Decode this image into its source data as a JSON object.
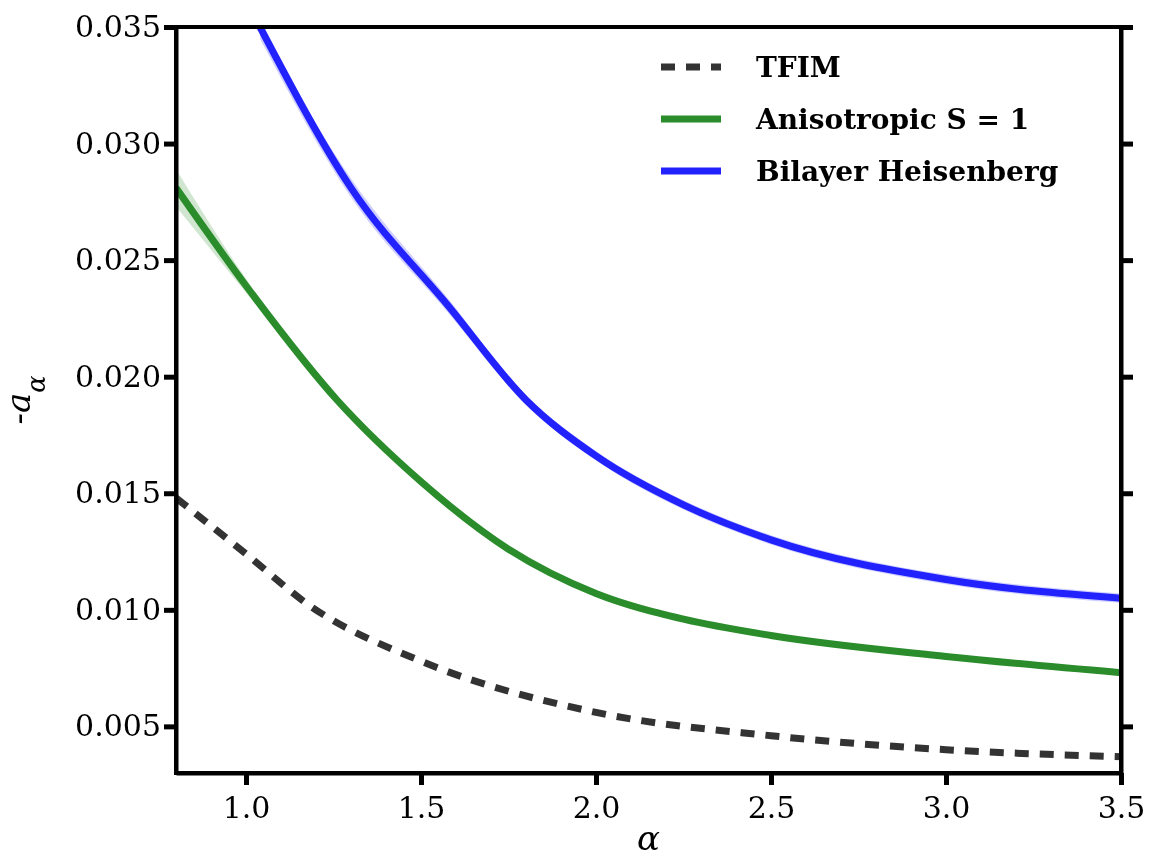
{
  "chart_data": {
    "type": "line",
    "xlabel": "α",
    "ylabel": "-a$_{α}$",
    "xlim": [
      0.8,
      3.5
    ],
    "ylim": [
      0.003,
      0.035
    ],
    "xticks": [
      {
        "value": 1.0,
        "label": "1.0"
      },
      {
        "value": 1.5,
        "label": "1.5"
      },
      {
        "value": 2.0,
        "label": "2.0"
      },
      {
        "value": 2.5,
        "label": "2.5"
      },
      {
        "value": 3.0,
        "label": "3.0"
      },
      {
        "value": 3.5,
        "label": "3.5"
      }
    ],
    "yticks": [
      0.005,
      {
        "value": 0.01,
        "label": "0.010"
      },
      0.015,
      {
        "value": 0.02,
        "label": "0.020"
      },
      0.025,
      {
        "value": 0.03,
        "label": "0.030"
      },
      0.035
    ],
    "grid": false,
    "legend": "top right",
    "marker": "none",
    "series": [
      {
        "name": "TFIM",
        "color": "#333333",
        "line_style": "dashed",
        "x": [
          0.8,
          1.0,
          1.18,
          1.5,
          2.0,
          2.5,
          3.0,
          3.5
        ],
        "values": [
          0.0148,
          0.0124,
          0.0102,
          0.0078,
          0.0056,
          0.0046,
          0.004,
          0.0037
        ]
      },
      {
        "name": "Anisotropic S = 1",
        "color": "#2a8c2a",
        "line_style": "solid",
        "x": [
          0.8,
          1.0,
          1.26,
          1.5,
          1.75,
          2.0,
          2.25,
          2.5,
          3.0,
          3.5
        ],
        "values": [
          0.0281,
          0.0239,
          0.019,
          0.0155,
          0.0126,
          0.0107,
          0.0096,
          0.0089,
          0.008,
          0.0073
        ],
        "lower": [
          0.0273,
          0.0236,
          0.0189,
          0.0154,
          0.0126,
          0.0107,
          0.0096,
          0.0089,
          0.008,
          0.0073
        ],
        "upper": [
          0.0289,
          0.0242,
          0.0191,
          0.0156,
          0.0126,
          0.0107,
          0.0096,
          0.0089,
          0.008,
          0.0073
        ]
      },
      {
        "name": "Bilayer Heisenberg",
        "color": "#2222ff",
        "line_style": "solid",
        "x": [
          1.04,
          1.3,
          1.58,
          1.8,
          2.0,
          2.25,
          2.5,
          3.0,
          3.5
        ],
        "values": [
          0.035,
          0.0281,
          0.023,
          0.019,
          0.0166,
          0.0145,
          0.013,
          0.0113,
          0.0105
        ],
        "lower": [
          0.0345,
          0.0277,
          0.0227,
          0.0188,
          0.0164,
          0.0143,
          0.0128,
          0.0111,
          0.0103
        ],
        "upper": [
          0.035,
          0.0285,
          0.0233,
          0.0192,
          0.0168,
          0.0147,
          0.0132,
          0.0115,
          0.0107
        ]
      }
    ]
  }
}
